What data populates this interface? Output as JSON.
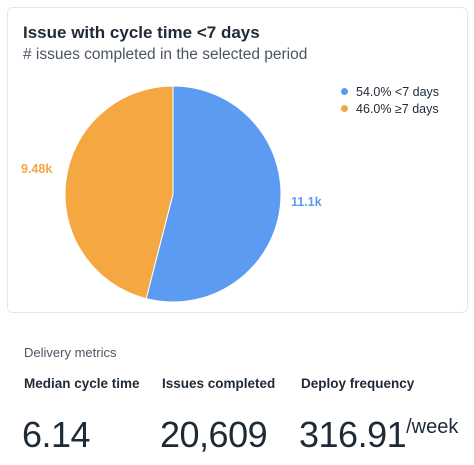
{
  "card": {
    "title": "Issue with cycle time <7 days",
    "subtitle": "# issues completed in the selected period"
  },
  "chart_data": {
    "type": "pie",
    "title": "Issue with cycle time <7 days",
    "subtitle": "# issues completed in the selected period",
    "slices": [
      {
        "name": "<7 days",
        "percent": 54.0,
        "value_label": "11.1k",
        "legend_label": "54.0% <7 days",
        "color": "#5b9bf2"
      },
      {
        "name": "≥7 days",
        "percent": 46.0,
        "value_label": "9.48k",
        "legend_label": "46.0% ≥7 days",
        "color": "#f5a742"
      }
    ],
    "legend_position": "top-right"
  },
  "metrics": {
    "section_title": "Delivery metrics",
    "items": [
      {
        "label": "Median cycle time",
        "value": "6.14",
        "unit": ""
      },
      {
        "label": "Issues completed",
        "value": "20,609",
        "unit": ""
      },
      {
        "label": "Deploy frequency",
        "value": "316.91",
        "unit": "/week"
      }
    ]
  }
}
